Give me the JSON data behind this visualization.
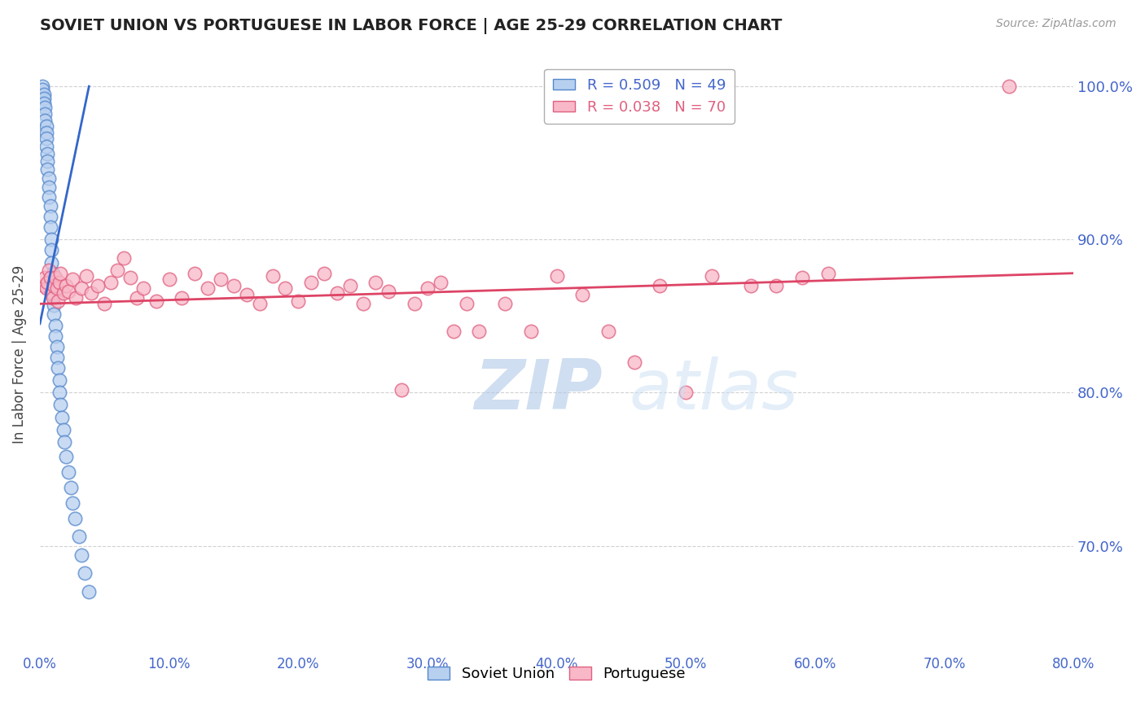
{
  "title": "SOVIET UNION VS PORTUGUESE IN LABOR FORCE | AGE 25-29 CORRELATION CHART",
  "source": "Source: ZipAtlas.com",
  "ylabel": "In Labor Force | Age 25-29",
  "xlim": [
    0.0,
    0.8
  ],
  "ylim": [
    0.63,
    1.02
  ],
  "yticks": [
    0.7,
    0.8,
    0.9,
    1.0
  ],
  "ytick_labels": [
    "70.0%",
    "80.0%",
    "90.0%",
    "100.0%"
  ],
  "xticks": [
    0.0,
    0.1,
    0.2,
    0.3,
    0.4,
    0.5,
    0.6,
    0.7,
    0.8
  ],
  "xtick_labels": [
    "0.0%",
    "10.0%",
    "20.0%",
    "30.0%",
    "40.0%",
    "50.0%",
    "60.0%",
    "70.0%",
    "80.0%"
  ],
  "watermark_zip": "ZIP",
  "watermark_atlas": "atlas",
  "soviet_color": "#b8d0f0",
  "soviet_edge": "#5588cc",
  "portuguese_color": "#f8b8c8",
  "portuguese_edge": "#e06080",
  "trend_soviet_color": "#3366cc",
  "trend_portuguese_color": "#dd4466",
  "tick_color": "#4466cc",
  "grid_color": "#cccccc",
  "background_color": "#ffffff",
  "soviet_x": [
    0.002,
    0.002,
    0.003,
    0.003,
    0.003,
    0.004,
    0.004,
    0.004,
    0.005,
    0.005,
    0.005,
    0.005,
    0.006,
    0.006,
    0.006,
    0.007,
    0.007,
    0.007,
    0.008,
    0.008,
    0.008,
    0.009,
    0.009,
    0.009,
    0.01,
    0.01,
    0.01,
    0.011,
    0.011,
    0.012,
    0.012,
    0.013,
    0.013,
    0.014,
    0.015,
    0.015,
    0.016,
    0.017,
    0.018,
    0.019,
    0.02,
    0.022,
    0.024,
    0.025,
    0.027,
    0.03,
    0.032,
    0.035,
    0.038
  ],
  "soviet_y": [
    1.0,
    0.998,
    0.995,
    0.992,
    0.989,
    0.986,
    0.982,
    0.978,
    0.974,
    0.97,
    0.966,
    0.961,
    0.956,
    0.951,
    0.946,
    0.94,
    0.934,
    0.928,
    0.922,
    0.915,
    0.908,
    0.9,
    0.893,
    0.885,
    0.878,
    0.871,
    0.864,
    0.857,
    0.851,
    0.844,
    0.837,
    0.83,
    0.823,
    0.816,
    0.808,
    0.8,
    0.792,
    0.784,
    0.776,
    0.768,
    0.758,
    0.748,
    0.738,
    0.728,
    0.718,
    0.706,
    0.694,
    0.682,
    0.67
  ],
  "portuguese_x": [
    0.003,
    0.004,
    0.005,
    0.006,
    0.007,
    0.008,
    0.009,
    0.01,
    0.011,
    0.012,
    0.013,
    0.014,
    0.015,
    0.016,
    0.018,
    0.02,
    0.022,
    0.025,
    0.028,
    0.032,
    0.036,
    0.04,
    0.045,
    0.05,
    0.055,
    0.06,
    0.065,
    0.07,
    0.075,
    0.08,
    0.09,
    0.1,
    0.11,
    0.12,
    0.13,
    0.14,
    0.15,
    0.16,
    0.17,
    0.18,
    0.19,
    0.2,
    0.21,
    0.22,
    0.23,
    0.24,
    0.25,
    0.26,
    0.27,
    0.28,
    0.29,
    0.3,
    0.31,
    0.32,
    0.33,
    0.34,
    0.36,
    0.38,
    0.4,
    0.42,
    0.44,
    0.46,
    0.48,
    0.5,
    0.52,
    0.55,
    0.57,
    0.59,
    0.61,
    0.75
  ],
  "portuguese_y": [
    0.87,
    0.875,
    0.868,
    0.872,
    0.88,
    0.875,
    0.865,
    0.862,
    0.87,
    0.875,
    0.868,
    0.86,
    0.872,
    0.878,
    0.865,
    0.87,
    0.866,
    0.874,
    0.862,
    0.868,
    0.876,
    0.865,
    0.87,
    0.858,
    0.872,
    0.88,
    0.888,
    0.875,
    0.862,
    0.868,
    0.86,
    0.874,
    0.862,
    0.878,
    0.868,
    0.874,
    0.87,
    0.864,
    0.858,
    0.876,
    0.868,
    0.86,
    0.872,
    0.878,
    0.865,
    0.87,
    0.858,
    0.872,
    0.866,
    0.802,
    0.858,
    0.868,
    0.872,
    0.84,
    0.858,
    0.84,
    0.858,
    0.84,
    0.876,
    0.864,
    0.84,
    0.82,
    0.87,
    0.8,
    0.876,
    0.87,
    0.87,
    0.875,
    0.878,
    1.0
  ],
  "trend_soviet_x0": 0.0,
  "trend_soviet_y0": 0.845,
  "trend_soviet_x1": 0.038,
  "trend_soviet_y1": 1.0,
  "trend_portuguese_x0": 0.0,
  "trend_portuguese_y0": 0.858,
  "trend_portuguese_x1": 0.8,
  "trend_portuguese_y1": 0.878
}
